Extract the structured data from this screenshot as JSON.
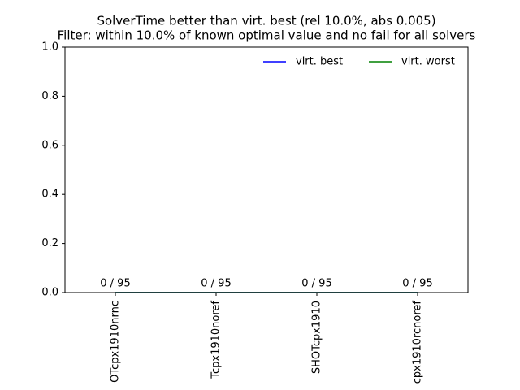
{
  "chart_data": {
    "type": "bar",
    "title": "SolverTime better than virt. best (rel 10.0%, abs 0.005)",
    "subtitle": "Filter: within 10.0% of known optimal value and no fail for all solvers",
    "categories": [
      "OTcpx1910nrnc",
      "Tcpx1910noref",
      "SHOTcpx1910",
      "cpx1910rcnoref"
    ],
    "values": [
      0,
      0,
      0,
      0
    ],
    "value_labels": [
      "0 / 95",
      "0 / 95",
      "0 / 95",
      "0 / 95"
    ],
    "color": "#1f77b4",
    "series": [
      {
        "name": "virt. best",
        "color": "#0000ff",
        "values": [
          0,
          0,
          0,
          0
        ]
      },
      {
        "name": "virt. worst",
        "color": "#008000",
        "values": [
          0,
          0,
          0,
          0
        ]
      }
    ],
    "ylim": [
      0,
      1
    ],
    "yticks": [
      {
        "value": 0,
        "label": "0.0"
      },
      {
        "value": 0.2,
        "label": "0.2"
      },
      {
        "value": 0.4,
        "label": "0.4"
      },
      {
        "value": 0.6,
        "label": "0.6"
      },
      {
        "value": 0.8,
        "label": "0.8"
      },
      {
        "value": 1,
        "label": "1.0"
      }
    ],
    "legend": "upper right"
  }
}
